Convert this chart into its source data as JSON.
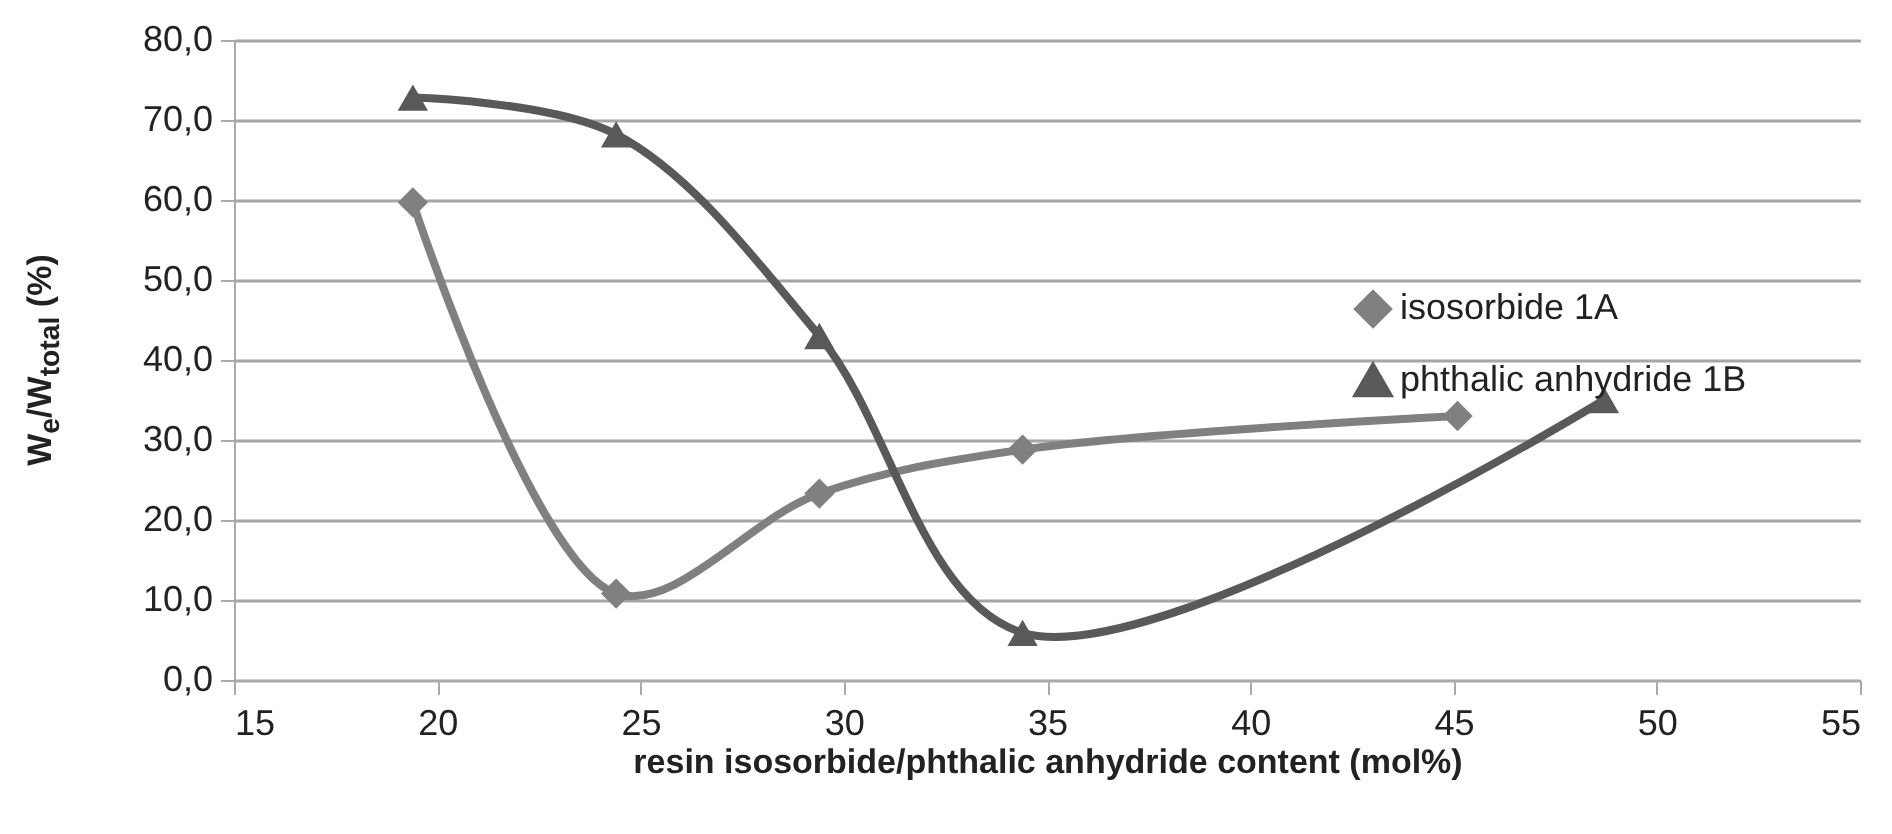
{
  "chart_data": {
    "type": "line",
    "xlabel": "resin isosorbide/phthalic anhydride content (mol%)",
    "ylabel": "W$_{e}$/W$_{total}$ (%)",
    "xlim": [
      15,
      55
    ],
    "xticks": [
      15,
      20,
      25,
      30,
      35,
      40,
      45,
      50,
      55
    ],
    "ylim": [
      0,
      80
    ],
    "yticks": [
      {
        "value": 0,
        "label": "0,0"
      },
      {
        "value": 10,
        "label": "10,0"
      },
      {
        "value": 20,
        "label": "20,0"
      },
      {
        "value": 30,
        "label": "30,0"
      },
      {
        "value": 40,
        "label": "40,0"
      },
      {
        "value": 50,
        "label": "50,0"
      },
      {
        "value": 60,
        "label": "60,0"
      },
      {
        "value": 70,
        "label": "70,0"
      },
      {
        "value": 80,
        "label": "80,0"
      }
    ],
    "grid": "y",
    "legend": "right",
    "series": [
      {
        "name": "isosorbide 1A",
        "color": "#808080",
        "marker": "diamond",
        "x": [
          19.4,
          24.4,
          29.4,
          34.4,
          45.1
        ],
        "values": [
          59.7,
          10.8,
          23.3,
          28.8,
          33.0
        ]
      },
      {
        "name": "phthalic anhydride 1B",
        "color": "#595959",
        "marker": "triangle",
        "x": [
          19.4,
          24.4,
          29.4,
          34.4,
          48.7
        ],
        "values": [
          72.8,
          68.2,
          43.0,
          5.9,
          35.0
        ]
      }
    ]
  }
}
